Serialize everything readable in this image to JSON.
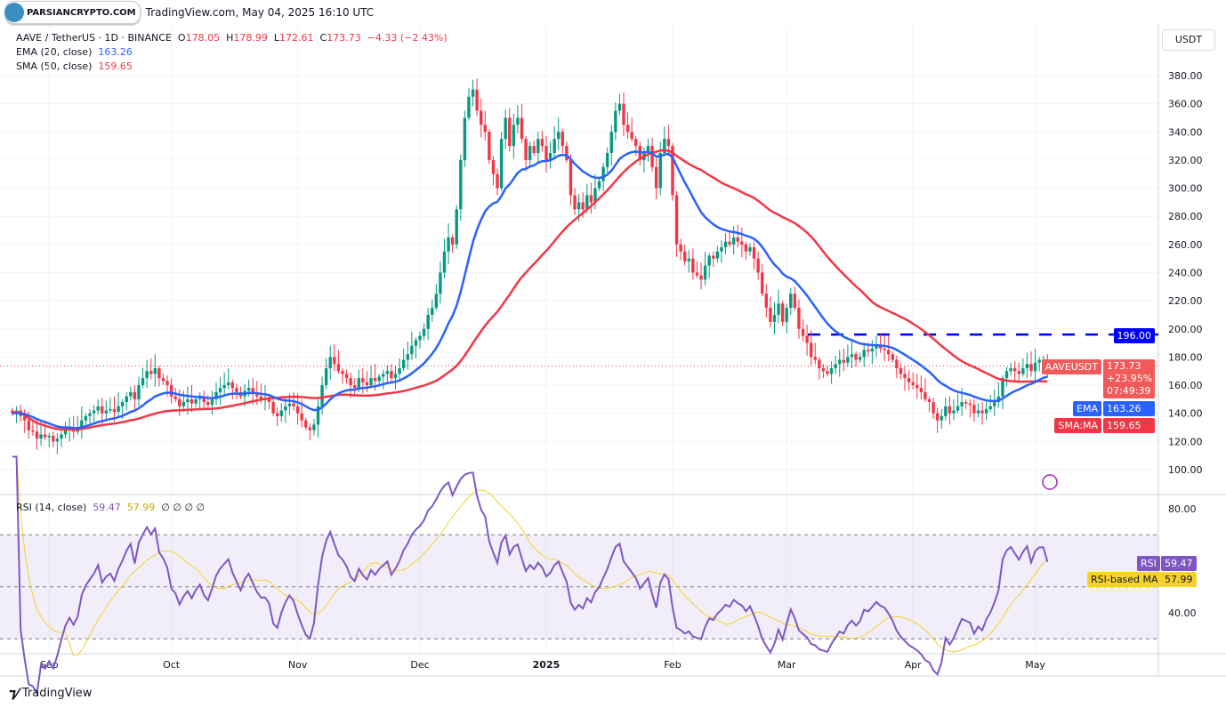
{
  "header": {
    "brand": "PARSIANCRYPTO.COM",
    "title": "TradingView.com, May 04, 2025 16:10 UTC"
  },
  "symbol": {
    "name": "AAVE / TetherUS · 1D · BINANCE",
    "o_label": "O",
    "o": "178.05",
    "h_label": "H",
    "h": "178.99",
    "l_label": "L",
    "l": "172.61",
    "c_label": "C",
    "c": "173.73",
    "change": "−4.33 (−2.43%)"
  },
  "indicators": {
    "ema_label": "EMA (20, close)",
    "ema_value": "163.26",
    "sma_label": "SMA (50, close)",
    "sma_value": "159.65",
    "rsi_label": "RSI (14, close)",
    "rsi_value": "59.47",
    "rsi_ma_value": "57.99",
    "rsi_extra": "∅ ∅ ∅ ∅"
  },
  "price_axis": {
    "currency": "USDT",
    "ticks": [
      "100.00",
      "120.00",
      "140.00",
      "160.00",
      "180.00",
      "200.00",
      "220.00",
      "240.00",
      "260.00",
      "280.00",
      "300.00",
      "320.00",
      "340.00",
      "360.00",
      "380.00"
    ]
  },
  "rsi_axis": {
    "ticks": [
      "40.00",
      "80.00"
    ]
  },
  "time_axis": {
    "labels": [
      "Sep",
      "Oct",
      "Nov",
      "Dec",
      "2025",
      "Feb",
      "Mar",
      "Apr",
      "May"
    ]
  },
  "tags": {
    "level": "196.00",
    "symbol": "AAVEUSDT",
    "price": "173.73",
    "pct": "+23.95%",
    "countdown": "07:49:39",
    "ema": "EMA",
    "ema_val": "163.26",
    "sma": "SMA:MA",
    "sma_val": "159.65",
    "rsi": "RSI",
    "rsi_val": "59.47",
    "rsi_ma": "RSI-based MA",
    "rsi_ma_val": "57.99"
  },
  "colors": {
    "up": "#089981",
    "down": "#f23645",
    "ema": "#2962ff",
    "sma": "#f23645",
    "rsi": "#7e57c2",
    "rsi_ma": "#f5d32b",
    "level": "#0000ff"
  },
  "footer": {
    "brand": "TradingView"
  },
  "chart_data": {
    "type": "candlestick",
    "start_date": "2024-08-23",
    "interval": "1D",
    "level_line": 196,
    "ylim": [
      90,
      395
    ],
    "closes": [
      140,
      142,
      138,
      135,
      128,
      127,
      122,
      125,
      123,
      124,
      120,
      122,
      125,
      128,
      130,
      127,
      129,
      135,
      138,
      140,
      142,
      145,
      140,
      142,
      143,
      141,
      145,
      148,
      152,
      155,
      150,
      160,
      165,
      170,
      168,
      172,
      165,
      163,
      160,
      152,
      150,
      145,
      148,
      150,
      147,
      150,
      152,
      148,
      146,
      150,
      155,
      158,
      160,
      162,
      158,
      155,
      152,
      156,
      158,
      155,
      152,
      150,
      150,
      148,
      140,
      138,
      142,
      145,
      147,
      145,
      140,
      135,
      130,
      128,
      132,
      145,
      160,
      172,
      180,
      175,
      170,
      168,
      165,
      160,
      158,
      165,
      162,
      160,
      165,
      163,
      166,
      168,
      170,
      165,
      168,
      172,
      178,
      182,
      188,
      192,
      195,
      200,
      210,
      215,
      225,
      240,
      255,
      265,
      260,
      285,
      320,
      350,
      365,
      370,
      355,
      345,
      340,
      320,
      310,
      300,
      335,
      350,
      330,
      345,
      350,
      335,
      320,
      330,
      325,
      335,
      330,
      320,
      325,
      335,
      340,
      330,
      320,
      295,
      285,
      290,
      285,
      295,
      290,
      300,
      305,
      315,
      325,
      340,
      355,
      360,
      345,
      340,
      335,
      330,
      320,
      325,
      330,
      315,
      300,
      325,
      335,
      330,
      295,
      260,
      255,
      248,
      250,
      240,
      238,
      235,
      245,
      252,
      250,
      255,
      258,
      262,
      260,
      265,
      262,
      260,
      255,
      258,
      250,
      240,
      225,
      215,
      205,
      210,
      218,
      205,
      215,
      225,
      215,
      200,
      195,
      190,
      180,
      178,
      172,
      170,
      168,
      172,
      175,
      178,
      176,
      180,
      182,
      178,
      180,
      185,
      184,
      186,
      188,
      186,
      185,
      182,
      178,
      172,
      168,
      165,
      162,
      160,
      158,
      155,
      150,
      148,
      140,
      135,
      138,
      145,
      140,
      142,
      145,
      148,
      147,
      146,
      140,
      142,
      140,
      143,
      145,
      148,
      152,
      165,
      170,
      172,
      170,
      168,
      172,
      175,
      170,
      176,
      178,
      178,
      173.73
    ]
  }
}
